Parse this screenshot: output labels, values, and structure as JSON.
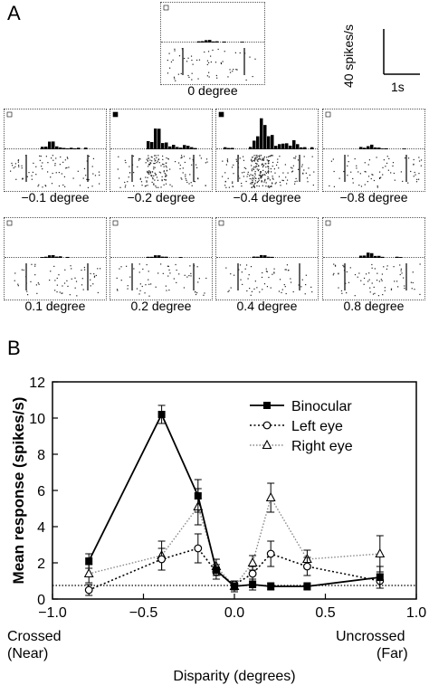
{
  "panelA": {
    "label": "A",
    "scalebar": {
      "y": "40 spikes/s",
      "x": "1s"
    },
    "top_label": "0 degree",
    "row1": [
      "−0.1 degree",
      "−0.2 degree",
      "−0.4 degree",
      "−0.8 degree"
    ],
    "row2": [
      "0.1 degree",
      "0.2 degree",
      "0.4 degree",
      "0.8 degree"
    ]
  },
  "panelB": {
    "label": "B"
  },
  "chart_data": {
    "type": "line",
    "xlabel": "Disparity (degrees)",
    "ylabel": "Mean response (spikes/s)",
    "xlim": [
      -1.0,
      1.0
    ],
    "ylim": [
      0,
      12
    ],
    "xticks": [
      "−1.0",
      "−0.5",
      "0.0",
      "0.5",
      "1.0"
    ],
    "yticks": [
      "0",
      "2",
      "4",
      "6",
      "8",
      "10",
      "12"
    ],
    "x_end_labels": {
      "left": [
        "Crossed",
        "(Near)"
      ],
      "right": [
        "Uncrossed",
        "(Far)"
      ]
    },
    "baseline": 0.75,
    "legend_position": "top-right",
    "series": [
      {
        "name": "Binocular",
        "style": "solid",
        "marker": "filled-square",
        "x": [
          -0.8,
          -0.4,
          -0.2,
          -0.1,
          0.0,
          0.1,
          0.2,
          0.4,
          0.8
        ],
        "y": [
          2.1,
          10.2,
          5.7,
          1.6,
          0.7,
          0.8,
          0.7,
          0.7,
          1.2
        ],
        "err": [
          0.4,
          0.5,
          0.9,
          0.3,
          0.2,
          0.3,
          0.2,
          0.2,
          0.6
        ]
      },
      {
        "name": "Left eye",
        "style": "dotted-dark",
        "marker": "open-circle",
        "x": [
          -0.8,
          -0.4,
          -0.2,
          -0.1,
          0.0,
          0.1,
          0.2,
          0.4,
          0.8
        ],
        "y": [
          0.5,
          2.2,
          2.8,
          1.5,
          0.8,
          1.4,
          2.5,
          1.8,
          1.0
        ],
        "err": [
          0.3,
          0.6,
          0.8,
          0.4,
          0.2,
          0.4,
          0.7,
          0.5,
          0.4
        ]
      },
      {
        "name": "Right eye",
        "style": "dotted-light",
        "marker": "open-triangle",
        "x": [
          -0.8,
          -0.4,
          -0.2,
          -0.1,
          0.0,
          0.1,
          0.2,
          0.4,
          0.8
        ],
        "y": [
          1.4,
          2.4,
          5.1,
          1.8,
          0.7,
          2.0,
          5.6,
          2.2,
          2.5
        ],
        "err": [
          0.5,
          0.8,
          1.0,
          0.4,
          0.3,
          0.4,
          0.8,
          0.5,
          1.0
        ]
      }
    ]
  }
}
